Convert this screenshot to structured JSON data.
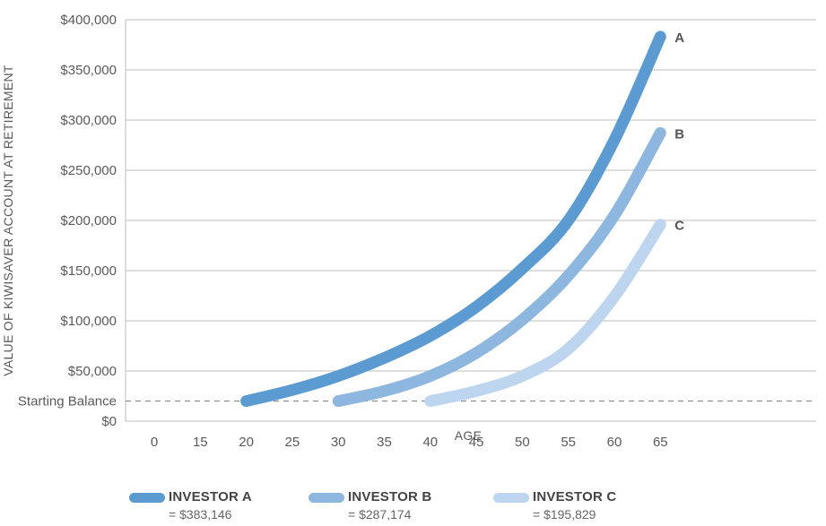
{
  "chart_data": {
    "type": "line",
    "ylabel": "VALUE OF KIWISAVER ACCOUNT AT RETIREMENT",
    "xlabel": "AGE",
    "x_ticks": [
      "0",
      "15",
      "20",
      "25",
      "30",
      "35",
      "40",
      "45",
      "50",
      "55",
      "60",
      "65"
    ],
    "y_ticks": [
      "$0",
      "$50,000",
      "$100,000",
      "$150,000",
      "$200,000",
      "$250,000",
      "$300,000",
      "$350,000",
      "$400,000"
    ],
    "ylim": [
      0,
      400000
    ],
    "reference_line": {
      "label": "Starting Balance",
      "value": 20000,
      "style": "dashed"
    },
    "grid": "horizontal",
    "series": [
      {
        "name": "INVESTOR A",
        "end_label": "A",
        "color": "#5b9bd1",
        "start_age": 20,
        "end_age": 65,
        "start_value": 20000,
        "end_value": 383146,
        "x": [
          20,
          25,
          30,
          35,
          40,
          45,
          50,
          55,
          60,
          65
        ],
        "values": [
          20000,
          31000,
          45000,
          63000,
          85000,
          114000,
          152000,
          200000,
          280000,
          383146
        ]
      },
      {
        "name": "INVESTOR B",
        "end_label": "B",
        "color": "#8eb7e0",
        "start_age": 30,
        "end_age": 65,
        "start_value": 20000,
        "end_value": 287174,
        "x": [
          30,
          35,
          40,
          45,
          50,
          55,
          60,
          65
        ],
        "values": [
          20000,
          30000,
          45000,
          68000,
          101000,
          145000,
          205000,
          287174
        ]
      },
      {
        "name": "INVESTOR C",
        "end_label": "C",
        "color": "#bdd5ee",
        "start_age": 40,
        "end_age": 65,
        "start_value": 20000,
        "end_value": 195829,
        "x": [
          40,
          45,
          50,
          55,
          60,
          65
        ],
        "values": [
          20000,
          30000,
          45000,
          72000,
          124000,
          195829
        ]
      }
    ]
  },
  "legend": [
    {
      "name": "INVESTOR A",
      "value_text": "= $383,146",
      "color": "#5b9bd1"
    },
    {
      "name": "INVESTOR B",
      "value_text": "= $287,174",
      "color": "#8eb7e0"
    },
    {
      "name": "INVESTOR C",
      "value_text": "= $195,829",
      "color": "#bdd5ee"
    }
  ]
}
